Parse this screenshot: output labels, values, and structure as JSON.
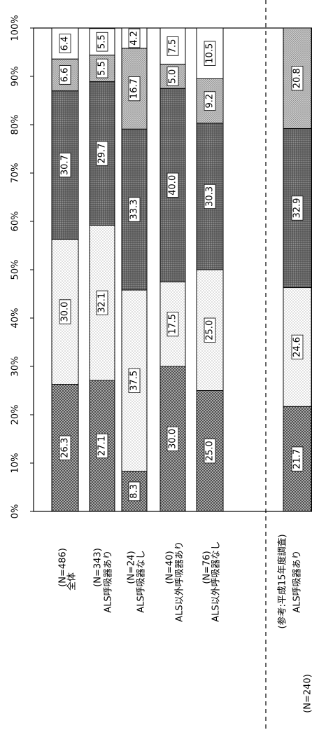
{
  "chart_data": {
    "type": "bar",
    "orientation": "horizontal-stacked-rotated",
    "stacked": true,
    "percent_scale": true,
    "xlim": [
      0,
      100
    ],
    "x_ticks": [
      "0%",
      "10%",
      "20%",
      "30%",
      "40%",
      "50%",
      "60%",
      "70%",
      "80%",
      "90%",
      "100%"
    ],
    "grid": false,
    "categories": [
      {
        "name": "全体",
        "n": "(N=486)"
      },
      {
        "name": "ALS呼吸器あり",
        "n": "(N=343)"
      },
      {
        "name": "ALS呼吸器なし",
        "n": "(N=24)"
      },
      {
        "name": "ALS以外呼吸器あり",
        "n": "(N=40)"
      },
      {
        "name": "ALS以外呼吸器なし",
        "n": "(N=76)"
      },
      {
        "name": "(参考:平成15年度調査)",
        "n": ""
      },
      {
        "name": "ALS呼吸器あり",
        "n": "(N=240)"
      }
    ],
    "reference_separator_after_index": 5,
    "series": [
      {
        "values": [
          26.3,
          27.1,
          8.3,
          30.0,
          25.0,
          null,
          21.7
        ],
        "labels": [
          "26.3",
          "27.1",
          "8.3",
          "30.0",
          "25.0",
          "",
          "21.7"
        ]
      },
      {
        "values": [
          30.0,
          32.1,
          37.5,
          17.5,
          25.0,
          null,
          24.6
        ],
        "labels": [
          "30.0",
          "32.1",
          "37.5",
          "17.5",
          "25.0",
          "",
          "24.6"
        ]
      },
      {
        "values": [
          30.7,
          29.7,
          33.3,
          40.0,
          30.3,
          null,
          32.9
        ],
        "labels": [
          "30.7",
          "29.7",
          "33.3",
          "40.0",
          "30.3",
          "",
          "32.9"
        ]
      },
      {
        "values": [
          6.6,
          5.5,
          16.7,
          5.0,
          9.2,
          null,
          20.8
        ],
        "labels": [
          "6.6",
          "5.5",
          "16.7",
          "5.0",
          "9.2",
          "",
          "20.8"
        ]
      },
      {
        "values": [
          6.4,
          5.5,
          4.2,
          7.5,
          10.5,
          null,
          0
        ],
        "labels": [
          "6.4",
          "5.5",
          "4.2",
          "7.5",
          "10.5",
          "",
          ""
        ]
      }
    ]
  }
}
